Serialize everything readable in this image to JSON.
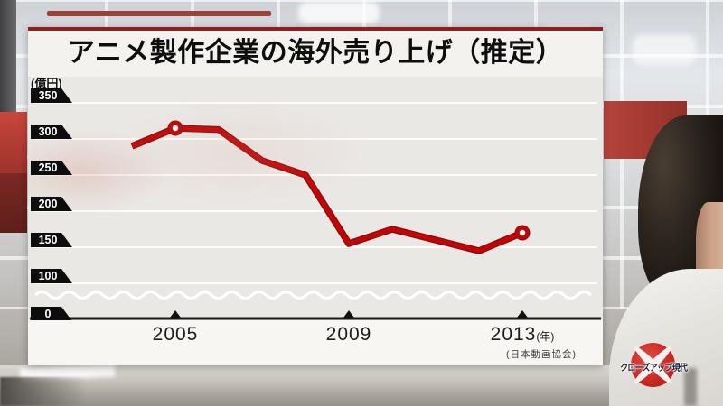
{
  "program": {
    "logo_text": "クローズアップ現代"
  },
  "chart_card": {
    "title": "アニメ製作企業の海外売り上げ（推定）",
    "y_axis_unit": "(億円)",
    "y_ticks": [
      "350",
      "300",
      "250",
      "200",
      "150",
      "100",
      "0"
    ],
    "x_ticks": [
      "2005",
      "2009",
      "2013"
    ],
    "x_year_suffix": "(年)",
    "source": "(日本動画協会)"
  },
  "chart_data": {
    "type": "line",
    "title": "アニメ製作企業の海外売り上げ（推定）",
    "unit": "億円",
    "x": [
      2004,
      2005,
      2006,
      2007,
      2008,
      2009,
      2010,
      2011,
      2012,
      2013
    ],
    "values": [
      290,
      315,
      313,
      270,
      250,
      155,
      175,
      160,
      145,
      170
    ],
    "highlighted_x": [
      2005,
      2013
    ],
    "x_tick_labels": [
      "2005",
      "2009",
      "2013"
    ],
    "y_ticks": [
      350,
      300,
      250,
      200,
      150,
      100,
      0
    ],
    "ylim": [
      0,
      350
    ],
    "y_axis_break_between": [
      0,
      100
    ],
    "grid": "horizontal-only",
    "legend": "none",
    "line_color": "#c00606",
    "source": "(日本動画協会)"
  }
}
